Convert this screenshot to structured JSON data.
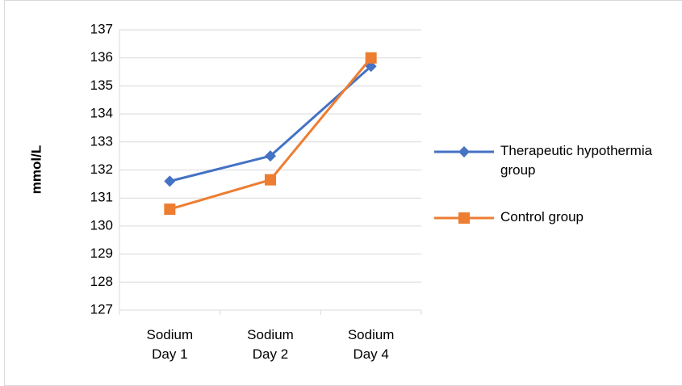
{
  "chart_data": {
    "type": "line",
    "y_label": "mmol/L",
    "categories": [
      "Sodium Day 1",
      "Sodium Day 2",
      "Sodium Day 4"
    ],
    "series": [
      {
        "name": "Therapeutic hypothermia group",
        "color": "#4472c4",
        "marker": "diamond",
        "values": [
          131.6,
          132.5,
          135.7
        ]
      },
      {
        "name": "Control group",
        "color": "#ed7d31",
        "marker": "square",
        "values": [
          130.6,
          131.65,
          136.0
        ]
      }
    ],
    "ylim": [
      127,
      137
    ],
    "yticks": [
      127,
      128,
      129,
      130,
      131,
      132,
      133,
      134,
      135,
      136,
      137
    ],
    "grid": true,
    "legend": "right"
  }
}
